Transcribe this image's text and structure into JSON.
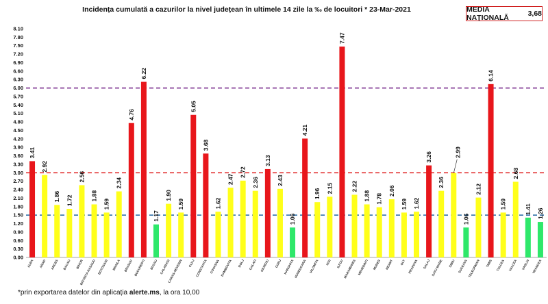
{
  "header": {
    "title": "Incidența cumulată a cazurilor la nivel județean în ultimele 14 zile la ‰ de locuitori  *  23-Mar-2021",
    "badge_label": "MEDIA NAȚIONALĂ",
    "badge_value": "3,68"
  },
  "footnote": {
    "prefix": "*prin exportarea datelor din aplicația ",
    "bold": "alerte.ms",
    "suffix": ", la ora 10,00"
  },
  "colors": {
    "red": "#e8161b",
    "yellow": "#ffff1a",
    "green": "#2ee86a",
    "purple_line": "#7a2e8e",
    "red_line": "#e23030",
    "blue_line": "#2f6fa8"
  },
  "chart_data": {
    "type": "bar",
    "title": "Incidența cumulată a cazurilor la nivel județean în ultimele 14 zile la ‰ de locuitori  *  23-Mar-2021",
    "ylim": [
      0,
      8.1
    ],
    "yticks": [
      "0.00",
      "0.30",
      "0.60",
      "0.90",
      "1.20",
      "1.50",
      "1.80",
      "2.10",
      "2.40",
      "2.70",
      "3.00",
      "3.30",
      "3.60",
      "3.90",
      "4.20",
      "4.50",
      "4.80",
      "5.10",
      "5.40",
      "5.70",
      "6.00",
      "6.30",
      "6.60",
      "6.90",
      "7.20",
      "7.50",
      "7.80",
      "8.10"
    ],
    "reference_lines": [
      {
        "value": 6.0,
        "color": "purple"
      },
      {
        "value": 3.0,
        "color": "red"
      },
      {
        "value": 1.5,
        "color": "blue"
      }
    ],
    "categories": [
      "ALBA",
      "ARAD",
      "ARGES",
      "BACAU",
      "BIHOR",
      "BISTRITA NASAUD",
      "BOTOSANI",
      "BRAILA",
      "BRASOV",
      "BUCURESTI",
      "BUZAU",
      "CALARASI",
      "CARAS-SEVERIN",
      "CLUJ",
      "CONSTANTA",
      "COVASNA",
      "DAMBOVITA",
      "DOLJ",
      "GALATI",
      "GIURGIU",
      "GORJ",
      "HARGHITA",
      "HUNEDOARA",
      "IALOMITA",
      "IASI",
      "ILFOV",
      "MARAMURES",
      "MEHEDINTI",
      "MURES",
      "NEAMT",
      "OLT",
      "PRAHOVA",
      "SALAJ",
      "SATU MARE",
      "SIBIU",
      "SUCEAVA",
      "TELEORMAN",
      "TIMIS",
      "TULCEA",
      "VALCEA",
      "VASLUI",
      "VRANCEA"
    ],
    "values": [
      3.41,
      2.92,
      1.86,
      1.72,
      2.56,
      1.88,
      1.59,
      2.34,
      4.76,
      6.22,
      1.17,
      1.9,
      1.59,
      5.05,
      3.68,
      1.62,
      2.47,
      2.72,
      2.36,
      3.13,
      2.43,
      1.06,
      4.21,
      1.96,
      2.15,
      7.47,
      2.22,
      1.88,
      1.78,
      2.06,
      1.59,
      1.62,
      3.26,
      2.36,
      2.99,
      1.06,
      2.12,
      6.14,
      1.59,
      2.68,
      1.41,
      1.26
    ],
    "labels": [
      "3.41",
      "2.92",
      "1.86",
      "1.72",
      "2.56",
      "1.88",
      "1.59",
      "2.34",
      "4.76",
      "6.22",
      "1.17",
      "1.90",
      "1.59",
      "5.05",
      "3.68",
      "1.62",
      "2.47",
      "2.72",
      "2.36",
      "3.13",
      "2.43",
      "1.06",
      "4.21",
      "1.96",
      "2.15",
      "7.47",
      "2.22",
      "1.88",
      "1.78",
      "2.06",
      "1.59",
      "1.62",
      "3.26",
      "2.36",
      "2.99",
      "1.06",
      "2.12",
      "6.14",
      "1.59",
      "2.68",
      "1.41",
      "1.26"
    ],
    "bar_colors": [
      "red",
      "yellow",
      "yellow",
      "yellow",
      "yellow",
      "yellow",
      "yellow",
      "yellow",
      "red",
      "red",
      "green",
      "yellow",
      "yellow",
      "red",
      "red",
      "yellow",
      "yellow",
      "yellow",
      "yellow",
      "red",
      "yellow",
      "green",
      "red",
      "yellow",
      "yellow",
      "red",
      "yellow",
      "yellow",
      "yellow",
      "yellow",
      "yellow",
      "yellow",
      "red",
      "yellow",
      "yellow",
      "green",
      "yellow",
      "red",
      "yellow",
      "yellow",
      "green",
      "green"
    ]
  }
}
